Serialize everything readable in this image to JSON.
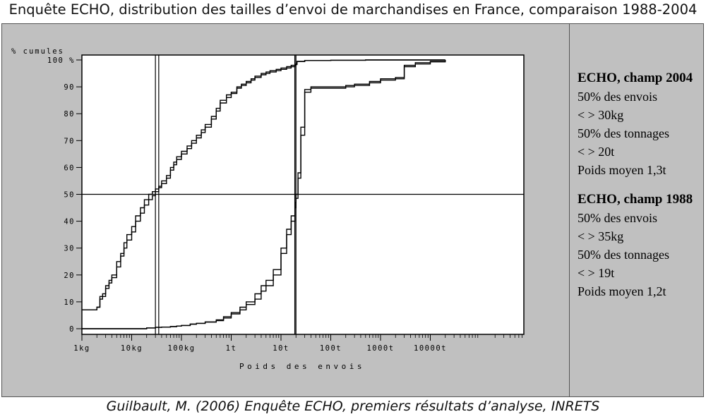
{
  "page": {
    "title": "Enquête ECHO, distribution des tailles d’envoi de marchandises en France, comparaison 1988-2004",
    "caption": "Guilbault, M. (2006) Enquête ECHO, premiers résultats d’analyse, INRETS"
  },
  "legend": {
    "blocks": [
      {
        "title": "ECHO, champ 2004",
        "lines": [
          "50% des envois",
          "< > 30kg",
          "50% des tonnages",
          "< > 20t",
          "Poids moyen 1,3t"
        ]
      },
      {
        "title": "ECHO, champ 1988",
        "lines": [
          "50% des envois",
          "< > 35kg",
          "50% des tonnages",
          "< > 19t",
          "Poids moyen 1,2t"
        ]
      }
    ]
  },
  "chart_data": {
    "type": "line",
    "title": "",
    "xlabel": "Poids des envois",
    "ylabel": "% cumules",
    "x_scale": "log",
    "x_unit": "kg",
    "xlim_kg": [
      1,
      100000
    ],
    "ylim": [
      0,
      100
    ],
    "x_ticks": [
      {
        "value": 1,
        "label": "1kg"
      },
      {
        "value": 10,
        "label": "10kg"
      },
      {
        "value": 100,
        "label": "100kg"
      },
      {
        "value": 1000,
        "label": "1t"
      },
      {
        "value": 10000,
        "label": "10t"
      },
      {
        "value": 100000,
        "label": "100t"
      },
      {
        "value": 1000000,
        "label": "1000t"
      },
      {
        "value": 10000000,
        "label": "10000t"
      }
    ],
    "y_ticks": [
      {
        "value": 0,
        "label": "0"
      },
      {
        "value": 10,
        "label": "10"
      },
      {
        "value": 20,
        "label": "20"
      },
      {
        "value": 30,
        "label": "30"
      },
      {
        "value": 40,
        "label": "40"
      },
      {
        "value": 50,
        "label": "50"
      },
      {
        "value": 60,
        "label": "60"
      },
      {
        "value": 70,
        "label": "70"
      },
      {
        "value": 80,
        "label": "80"
      },
      {
        "value": 90,
        "label": "90"
      },
      {
        "value": 100,
        "label": "100 %"
      }
    ],
    "reference_lines": [
      {
        "axis": "y",
        "value": 50
      },
      {
        "axis": "x",
        "value": 30
      },
      {
        "axis": "x",
        "value": 35
      },
      {
        "axis": "x",
        "value": 19000
      },
      {
        "axis": "x",
        "value": 20000
      }
    ],
    "series": [
      {
        "x": [
          1,
          1.8,
          2,
          2.3,
          2.6,
          3,
          3.5,
          4,
          5,
          6,
          7,
          8,
          10,
          12,
          15,
          18,
          22,
          26,
          30,
          35,
          40,
          50,
          60,
          70,
          80,
          100,
          130,
          160,
          200,
          250,
          300,
          400,
          500,
          600,
          800,
          1000,
          1300,
          1600,
          2000,
          2500,
          3000,
          4000,
          5000,
          6000,
          8000,
          10000,
          13000,
          16000,
          19000,
          20000,
          21000,
          30000,
          100000,
          500000,
          1000000,
          2000000,
          5000000,
          10000000,
          20000000
        ],
        "y": [
          7,
          7,
          8,
          12,
          13,
          16,
          18,
          20,
          25,
          28,
          32,
          35,
          38,
          42,
          45,
          48,
          50,
          51,
          52,
          53,
          55,
          57,
          60,
          62,
          64,
          66,
          68,
          70,
          72,
          74,
          76,
          79,
          82,
          85,
          87,
          88,
          90,
          91,
          92,
          93,
          94,
          95,
          95.5,
          96,
          96.5,
          97,
          97.5,
          98,
          98.3,
          98.5,
          99.5,
          99.8,
          99.9,
          100,
          100,
          100,
          100,
          100,
          100
        ]
      },
      {
        "x": [
          1,
          1.8,
          2,
          2.3,
          2.6,
          3,
          3.5,
          4,
          5,
          6,
          7,
          8,
          10,
          12,
          15,
          18,
          22,
          26,
          30,
          35,
          40,
          50,
          60,
          70,
          80,
          100,
          130,
          160,
          200,
          250,
          300,
          400,
          500,
          600,
          800,
          1000,
          1300,
          1600,
          2000,
          2500,
          3000,
          4000,
          5000,
          6000,
          8000,
          10000,
          13000,
          16000,
          19000,
          20000,
          21000,
          30000,
          100000,
          500000,
          1000000,
          2000000,
          5000000,
          10000000,
          20000000
        ],
        "y": [
          7,
          7,
          8,
          11,
          12,
          15,
          17,
          19,
          23,
          27,
          30,
          33,
          36,
          40,
          43,
          46,
          48,
          49.5,
          51,
          52.5,
          54,
          56,
          59,
          61,
          63,
          65,
          67,
          69,
          71,
          73,
          75,
          78,
          81,
          84,
          86,
          87.5,
          89.5,
          90.5,
          91.5,
          92.5,
          93.5,
          94.5,
          95,
          95.5,
          96,
          96.5,
          97,
          97.5,
          98,
          98.3,
          99.4,
          99.8,
          99.9,
          100,
          100,
          100,
          100,
          100,
          100
        ]
      },
      {
        "x": [
          1,
          10,
          20,
          30,
          40,
          60,
          80,
          100,
          150,
          200,
          300,
          500,
          700,
          1000,
          1500,
          2000,
          3000,
          4000,
          5000,
          7000,
          10000,
          13000,
          16000,
          19000,
          20000,
          22000,
          25000,
          30000,
          40000,
          60000,
          100000,
          200000,
          300000,
          600000,
          1000000,
          2000000,
          3000000,
          5000000,
          10000000,
          20000000
        ],
        "y": [
          0,
          0,
          0.3,
          0.5,
          0.6,
          0.8,
          1,
          1.2,
          1.7,
          2,
          2.5,
          3.3,
          4.5,
          6,
          8,
          10,
          13,
          16,
          18,
          22,
          30,
          37,
          42,
          47,
          50,
          58,
          75,
          89,
          90,
          90,
          90,
          90.5,
          91,
          92,
          93,
          93.5,
          98,
          99,
          99.5,
          100
        ]
      },
      {
        "x": [
          1,
          10,
          20,
          30,
          40,
          60,
          80,
          100,
          150,
          200,
          300,
          500,
          700,
          1000,
          1500,
          2000,
          3000,
          4000,
          5000,
          7000,
          10000,
          13000,
          16000,
          19000,
          20000,
          22000,
          25000,
          30000,
          40000,
          60000,
          100000,
          200000,
          300000,
          600000,
          1000000,
          2000000,
          3000000,
          5000000,
          10000000,
          20000000
        ],
        "y": [
          0,
          0,
          0.3,
          0.5,
          0.6,
          0.8,
          1,
          1.2,
          1.7,
          2,
          2.5,
          3,
          4,
          5.5,
          7,
          9,
          11,
          14,
          16,
          20,
          28,
          35,
          40,
          45,
          48.5,
          56,
          72,
          88,
          89.5,
          89.5,
          89.5,
          90,
          90.5,
          91.5,
          92.5,
          93,
          97.5,
          98.5,
          99.3,
          100
        ]
      }
    ],
    "grid": false,
    "legend_position": "right"
  }
}
